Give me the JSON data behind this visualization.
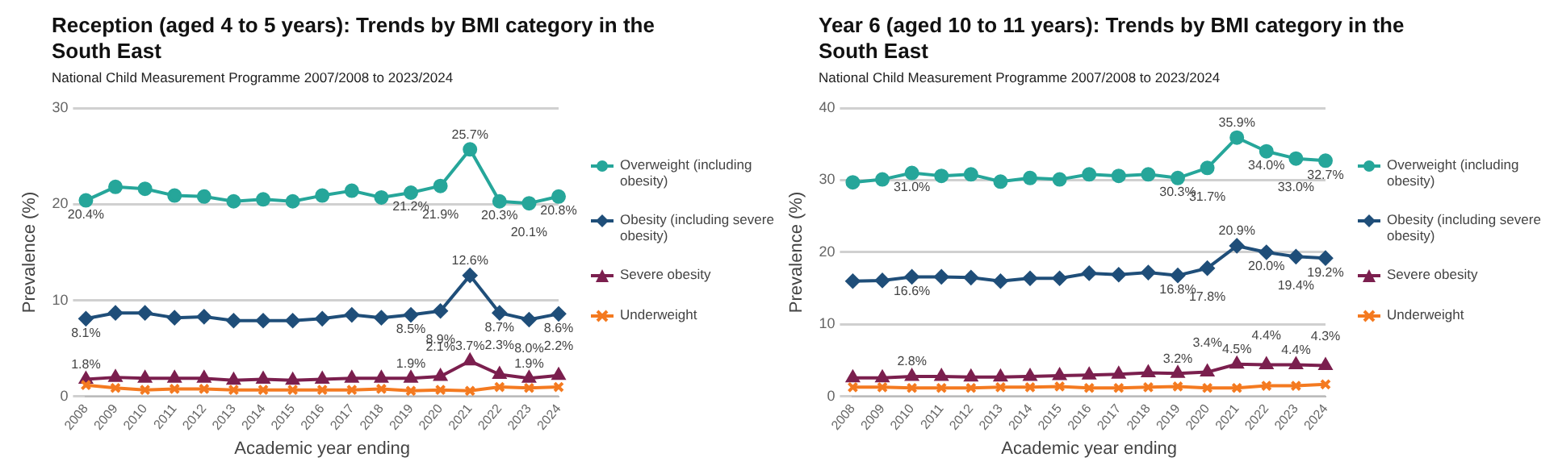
{
  "chart_data": [
    {
      "type": "line",
      "title": "Reception (aged 4 to 5 years): Trends by BMI category in the South East",
      "subtitle": "National Child Measurement Programme 2007/2008 to 2023/2024",
      "xlabel": "Academic year ending",
      "ylabel": "Prevalence (%)",
      "categories": [
        "2008",
        "2009",
        "2010",
        "2011",
        "2012",
        "2013",
        "2014",
        "2015",
        "2016",
        "2017",
        "2018",
        "2019",
        "2020",
        "2021",
        "2022",
        "2023",
        "2024"
      ],
      "ylim": [
        0,
        30
      ],
      "yticks": [
        0,
        10,
        20,
        30
      ],
      "grid": "y",
      "legend": "right",
      "series": [
        {
          "name": "Overweight (including obesity)",
          "color": "#26a69a",
          "marker": "circle",
          "values": [
            20.4,
            21.8,
            21.6,
            20.9,
            20.8,
            20.3,
            20.5,
            20.3,
            20.9,
            21.4,
            20.7,
            21.2,
            21.9,
            25.7,
            20.3,
            20.1,
            20.8
          ],
          "value_labels": [
            "20.4%",
            null,
            null,
            null,
            null,
            null,
            null,
            null,
            null,
            null,
            null,
            "21.2%",
            "21.9%",
            "25.7%",
            "20.3%",
            "20.1%",
            "20.8%"
          ]
        },
        {
          "name": "Obesity (including severe obesity)",
          "color": "#1f4e79",
          "marker": "diamond",
          "values": [
            8.1,
            8.7,
            8.7,
            8.2,
            8.3,
            7.9,
            7.9,
            7.9,
            8.1,
            8.5,
            8.2,
            8.5,
            8.9,
            12.6,
            8.7,
            8.0,
            8.6
          ],
          "value_labels": [
            "8.1%",
            null,
            null,
            null,
            null,
            null,
            null,
            null,
            null,
            null,
            null,
            "8.5%",
            "8.9%",
            "12.6%",
            "8.7%",
            "8.0%",
            "8.6%"
          ]
        },
        {
          "name": "Severe obesity",
          "color": "#7b1f4e",
          "marker": "triangle",
          "values": [
            1.8,
            2.0,
            1.9,
            1.9,
            1.9,
            1.7,
            1.8,
            1.7,
            1.8,
            1.9,
            1.9,
            1.9,
            2.1,
            3.7,
            2.3,
            1.9,
            2.2
          ],
          "value_labels": [
            "1.8%",
            null,
            null,
            null,
            null,
            null,
            null,
            null,
            null,
            null,
            null,
            "1.9%",
            "2.1%",
            "3.7%",
            "2.3%",
            "1.9%",
            "2.2%"
          ]
        },
        {
          "name": "Underweight",
          "color": "#f47a20",
          "marker": "cross",
          "values": [
            1.2,
            0.9,
            0.7,
            0.8,
            0.8,
            0.7,
            0.7,
            0.7,
            0.7,
            0.7,
            0.8,
            0.6,
            0.7,
            0.6,
            1.0,
            0.9,
            1.0
          ]
        }
      ]
    },
    {
      "type": "line",
      "title": "Year 6 (aged 10 to 11 years): Trends by BMI category in the South East",
      "subtitle": "National Child Measurement Programme 2007/2008 to 2023/2024",
      "xlabel": "Academic year ending",
      "ylabel": "Prevalence (%)",
      "categories": [
        "2008",
        "2009",
        "2010",
        "2011",
        "2012",
        "2013",
        "2014",
        "2015",
        "2016",
        "2017",
        "2018",
        "2019",
        "2020",
        "2021",
        "2022",
        "2023",
        "2024"
      ],
      "ylim": [
        0,
        40
      ],
      "yticks": [
        0,
        10,
        20,
        30,
        40
      ],
      "grid": "y",
      "legend": "right",
      "series": [
        {
          "name": "Overweight (including obesity)",
          "color": "#26a69a",
          "marker": "circle",
          "values": [
            29.7,
            30.1,
            31.0,
            30.6,
            30.8,
            29.8,
            30.3,
            30.1,
            30.8,
            30.6,
            30.8,
            30.3,
            31.7,
            35.9,
            34.0,
            33.0,
            32.7
          ],
          "value_labels": [
            null,
            null,
            "31.0%",
            null,
            null,
            null,
            null,
            null,
            null,
            null,
            null,
            "30.3%",
            "31.7%",
            "35.9%",
            "34.0%",
            "33.0%",
            "32.7%"
          ]
        },
        {
          "name": "Obesity (including severe obesity)",
          "color": "#1f4e79",
          "marker": "diamond",
          "values": [
            16.0,
            16.1,
            16.6,
            16.6,
            16.5,
            16.0,
            16.4,
            16.4,
            17.1,
            16.9,
            17.2,
            16.8,
            17.8,
            20.9,
            20.0,
            19.4,
            19.2
          ],
          "value_labels": [
            null,
            null,
            "16.6%",
            null,
            null,
            null,
            null,
            null,
            null,
            null,
            null,
            "16.8%",
            "17.8%",
            "20.9%",
            "20.0%",
            "19.4%",
            "19.2%"
          ]
        },
        {
          "name": "Severe obesity",
          "color": "#7b1f4e",
          "marker": "triangle",
          "values": [
            2.6,
            2.6,
            2.8,
            2.8,
            2.7,
            2.7,
            2.8,
            2.9,
            3.0,
            3.1,
            3.3,
            3.2,
            3.4,
            4.5,
            4.4,
            4.4,
            4.3
          ],
          "value_labels": [
            null,
            null,
            "2.8%",
            null,
            null,
            null,
            null,
            null,
            null,
            null,
            null,
            "3.2%",
            "3.4%",
            "4.5%",
            "4.4%",
            "4.4%",
            "4.3%"
          ]
        },
        {
          "name": "Underweight",
          "color": "#f47a20",
          "marker": "cross",
          "values": [
            1.3,
            1.3,
            1.2,
            1.2,
            1.2,
            1.3,
            1.3,
            1.4,
            1.2,
            1.2,
            1.3,
            1.4,
            1.2,
            1.2,
            1.5,
            1.5,
            1.7
          ]
        }
      ]
    }
  ]
}
